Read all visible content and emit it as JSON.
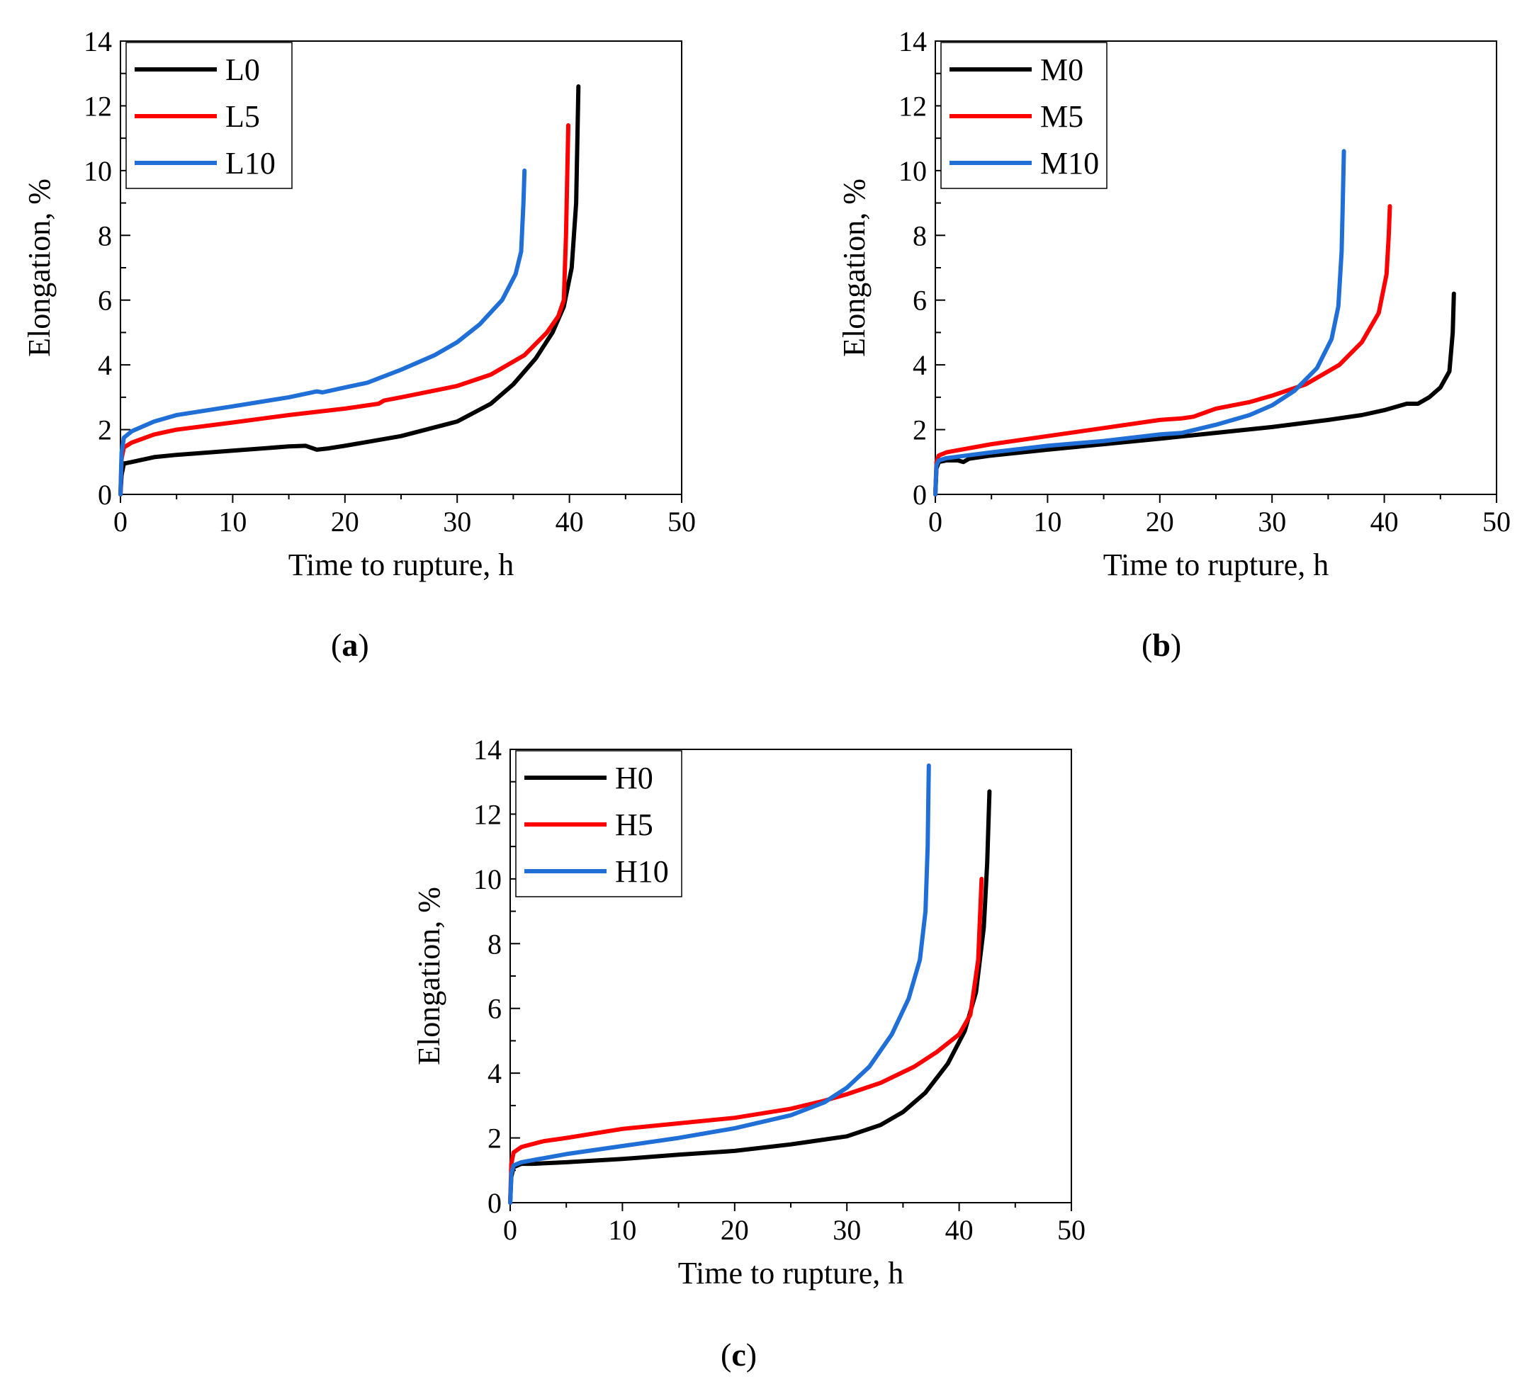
{
  "chart_data": [
    {
      "panel": "a",
      "type": "line",
      "xlabel": "Time to rupture, h",
      "ylabel": "Elongation, %",
      "xlim": [
        0,
        50
      ],
      "ylim": [
        0,
        14
      ],
      "xticks": [
        0,
        10,
        20,
        30,
        40,
        50
      ],
      "yticks": [
        0,
        2,
        4,
        6,
        8,
        10,
        12,
        14
      ],
      "legend_position": "top-left",
      "series": [
        {
          "name": "L0",
          "color": "#000000",
          "points": [
            [
              0,
              0
            ],
            [
              0.1,
              0.6
            ],
            [
              0.3,
              0.95
            ],
            [
              1,
              1.0
            ],
            [
              3,
              1.15
            ],
            [
              5,
              1.22
            ],
            [
              10,
              1.35
            ],
            [
              15,
              1.48
            ],
            [
              16.5,
              1.5
            ],
            [
              17.5,
              1.38
            ],
            [
              18.5,
              1.42
            ],
            [
              20,
              1.5
            ],
            [
              25,
              1.8
            ],
            [
              30,
              2.25
            ],
            [
              33,
              2.8
            ],
            [
              35,
              3.4
            ],
            [
              37,
              4.2
            ],
            [
              38.5,
              5.0
            ],
            [
              39.5,
              5.8
            ],
            [
              40.2,
              7.0
            ],
            [
              40.6,
              9.0
            ],
            [
              40.8,
              12.6
            ]
          ]
        },
        {
          "name": "L5",
          "color": "#ff0000",
          "points": [
            [
              0,
              0
            ],
            [
              0.1,
              1.1
            ],
            [
              0.3,
              1.45
            ],
            [
              1,
              1.6
            ],
            [
              3,
              1.85
            ],
            [
              5,
              2.0
            ],
            [
              10,
              2.22
            ],
            [
              15,
              2.45
            ],
            [
              20,
              2.65
            ],
            [
              23,
              2.8
            ],
            [
              23.5,
              2.9
            ],
            [
              25,
              3.0
            ],
            [
              30,
              3.35
            ],
            [
              33,
              3.7
            ],
            [
              36,
              4.3
            ],
            [
              38,
              5.0
            ],
            [
              39,
              5.5
            ],
            [
              39.5,
              6.0
            ],
            [
              39.7,
              8.0
            ],
            [
              39.9,
              11.4
            ]
          ]
        },
        {
          "name": "L10",
          "color": "#1f6fd6",
          "points": [
            [
              0,
              0
            ],
            [
              0.1,
              1.3
            ],
            [
              0.3,
              1.75
            ],
            [
              1,
              1.95
            ],
            [
              3,
              2.25
            ],
            [
              5,
              2.45
            ],
            [
              10,
              2.72
            ],
            [
              15,
              3.0
            ],
            [
              17.5,
              3.18
            ],
            [
              18,
              3.15
            ],
            [
              20,
              3.3
            ],
            [
              22,
              3.45
            ],
            [
              25,
              3.85
            ],
            [
              28,
              4.3
            ],
            [
              30,
              4.7
            ],
            [
              32,
              5.25
            ],
            [
              34,
              6.0
            ],
            [
              35.2,
              6.8
            ],
            [
              35.7,
              7.5
            ],
            [
              35.9,
              9.0
            ],
            [
              36,
              10.0
            ]
          ]
        }
      ]
    },
    {
      "panel": "b",
      "type": "line",
      "xlabel": "Time to rupture, h",
      "ylabel": "Elongation, %",
      "xlim": [
        0,
        50
      ],
      "ylim": [
        0,
        14
      ],
      "xticks": [
        0,
        10,
        20,
        30,
        40,
        50
      ],
      "yticks": [
        0,
        2,
        4,
        6,
        8,
        10,
        12,
        14
      ],
      "legend_position": "top-left",
      "series": [
        {
          "name": "M0",
          "color": "#000000",
          "points": [
            [
              0,
              0
            ],
            [
              0.1,
              0.8
            ],
            [
              0.3,
              1.0
            ],
            [
              1,
              1.05
            ],
            [
              2,
              1.05
            ],
            [
              2.5,
              1.0
            ],
            [
              3,
              1.1
            ],
            [
              5,
              1.2
            ],
            [
              10,
              1.38
            ],
            [
              15,
              1.55
            ],
            [
              20,
              1.72
            ],
            [
              25,
              1.9
            ],
            [
              30,
              2.08
            ],
            [
              35,
              2.3
            ],
            [
              38,
              2.45
            ],
            [
              40,
              2.6
            ],
            [
              42,
              2.8
            ],
            [
              43,
              2.8
            ],
            [
              44,
              3.0
            ],
            [
              45,
              3.3
            ],
            [
              45.8,
              3.8
            ],
            [
              46.1,
              5.0
            ],
            [
              46.2,
              6.2
            ]
          ]
        },
        {
          "name": "M5",
          "color": "#ff0000",
          "points": [
            [
              0,
              0
            ],
            [
              0.1,
              1.0
            ],
            [
              0.3,
              1.2
            ],
            [
              1,
              1.3
            ],
            [
              5,
              1.55
            ],
            [
              10,
              1.8
            ],
            [
              15,
              2.05
            ],
            [
              20,
              2.3
            ],
            [
              22,
              2.35
            ],
            [
              23,
              2.4
            ],
            [
              25,
              2.65
            ],
            [
              28,
              2.85
            ],
            [
              30,
              3.05
            ],
            [
              33,
              3.4
            ],
            [
              36,
              4.0
            ],
            [
              38,
              4.7
            ],
            [
              39.5,
              5.6
            ],
            [
              40.2,
              6.8
            ],
            [
              40.4,
              8.0
            ],
            [
              40.5,
              8.9
            ]
          ]
        },
        {
          "name": "M10",
          "color": "#1f6fd6",
          "points": [
            [
              0,
              0
            ],
            [
              0.1,
              0.9
            ],
            [
              0.3,
              1.05
            ],
            [
              1,
              1.12
            ],
            [
              5,
              1.3
            ],
            [
              10,
              1.5
            ],
            [
              15,
              1.65
            ],
            [
              20,
              1.85
            ],
            [
              22,
              1.9
            ],
            [
              25,
              2.15
            ],
            [
              28,
              2.45
            ],
            [
              30,
              2.75
            ],
            [
              32,
              3.2
            ],
            [
              34,
              3.9
            ],
            [
              35.3,
              4.8
            ],
            [
              35.9,
              5.8
            ],
            [
              36.2,
              7.5
            ],
            [
              36.3,
              9.0
            ],
            [
              36.4,
              10.6
            ]
          ]
        }
      ]
    },
    {
      "panel": "c",
      "type": "line",
      "xlabel": "Time to rupture, h",
      "ylabel": "Elongation, %",
      "xlim": [
        0,
        50
      ],
      "ylim": [
        0,
        14
      ],
      "xticks": [
        0,
        10,
        20,
        30,
        40,
        50
      ],
      "yticks": [
        0,
        2,
        4,
        6,
        8,
        10,
        12,
        14
      ],
      "legend_position": "top-left",
      "series": [
        {
          "name": "H0",
          "color": "#000000",
          "points": [
            [
              0,
              0
            ],
            [
              0.1,
              0.8
            ],
            [
              0.3,
              1.1
            ],
            [
              1,
              1.2
            ],
            [
              2,
              1.2
            ],
            [
              5,
              1.25
            ],
            [
              10,
              1.35
            ],
            [
              15,
              1.48
            ],
            [
              20,
              1.6
            ],
            [
              25,
              1.8
            ],
            [
              30,
              2.05
            ],
            [
              33,
              2.4
            ],
            [
              35,
              2.8
            ],
            [
              37,
              3.4
            ],
            [
              39,
              4.3
            ],
            [
              40.5,
              5.3
            ],
            [
              41.5,
              6.5
            ],
            [
              42.2,
              8.5
            ],
            [
              42.5,
              10.5
            ],
            [
              42.7,
              12.7
            ]
          ]
        },
        {
          "name": "H5",
          "color": "#ff0000",
          "points": [
            [
              0,
              0
            ],
            [
              0.1,
              1.2
            ],
            [
              0.3,
              1.55
            ],
            [
              1,
              1.72
            ],
            [
              3,
              1.9
            ],
            [
              5,
              2.0
            ],
            [
              10,
              2.28
            ],
            [
              15,
              2.45
            ],
            [
              20,
              2.62
            ],
            [
              25,
              2.9
            ],
            [
              28,
              3.15
            ],
            [
              30,
              3.35
            ],
            [
              33,
              3.7
            ],
            [
              36,
              4.2
            ],
            [
              38,
              4.65
            ],
            [
              40,
              5.2
            ],
            [
              41,
              5.8
            ],
            [
              41.7,
              7.5
            ],
            [
              42,
              10.0
            ]
          ]
        },
        {
          "name": "H10",
          "color": "#1f6fd6",
          "points": [
            [
              0,
              0
            ],
            [
              0.1,
              0.9
            ],
            [
              0.3,
              1.15
            ],
            [
              1,
              1.25
            ],
            [
              5,
              1.5
            ],
            [
              10,
              1.75
            ],
            [
              15,
              2.0
            ],
            [
              20,
              2.3
            ],
            [
              25,
              2.7
            ],
            [
              28,
              3.1
            ],
            [
              30,
              3.55
            ],
            [
              32,
              4.2
            ],
            [
              34,
              5.2
            ],
            [
              35.5,
              6.3
            ],
            [
              36.5,
              7.5
            ],
            [
              37,
              9.0
            ],
            [
              37.2,
              11.0
            ],
            [
              37.3,
              13.5
            ]
          ]
        }
      ]
    }
  ],
  "captions": {
    "a": "a",
    "b": "b",
    "c": "c"
  }
}
